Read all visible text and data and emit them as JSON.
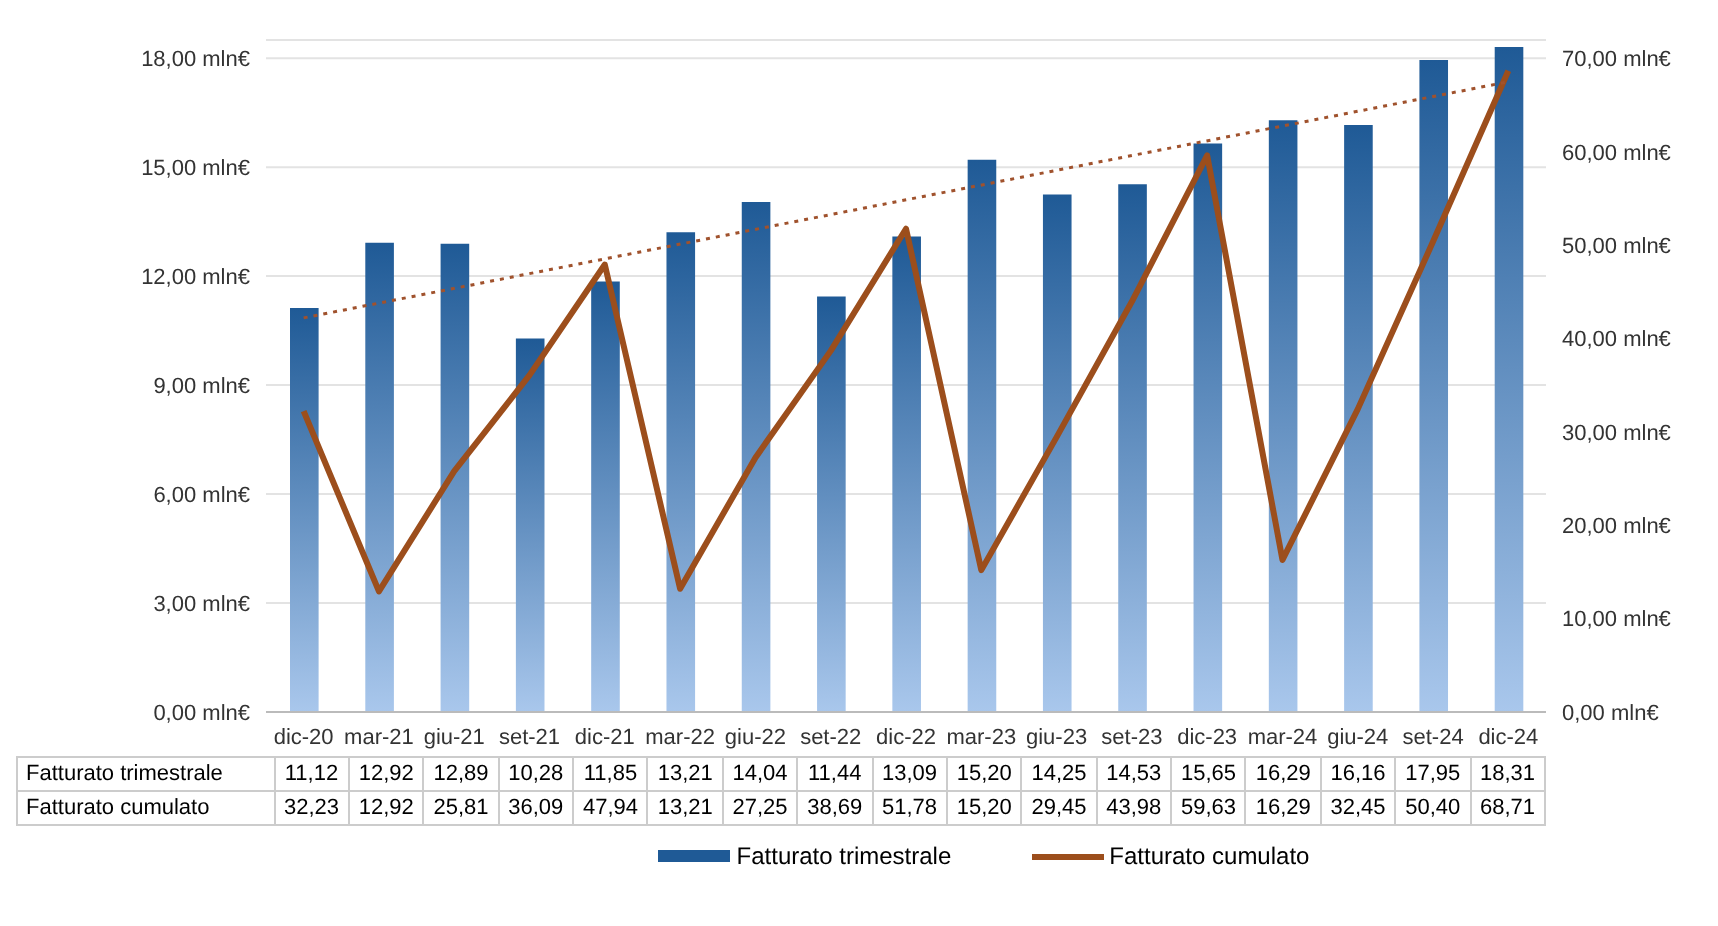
{
  "chart_data": {
    "type": "bar",
    "categories": [
      "dic-20",
      "mar-21",
      "giu-21",
      "set-21",
      "dic-21",
      "mar-22",
      "giu-22",
      "set-22",
      "dic-22",
      "mar-23",
      "giu-23",
      "set-23",
      "dic-23",
      "mar-24",
      "giu-24",
      "set-24",
      "dic-24"
    ],
    "series": [
      {
        "name": "Fatturato trimestrale",
        "color": "#1f5a96",
        "values": [
          11.12,
          12.92,
          12.89,
          10.28,
          11.85,
          13.21,
          14.04,
          11.44,
          13.09,
          15.2,
          14.25,
          14.53,
          15.65,
          16.29,
          16.16,
          17.95,
          18.31
        ],
        "value_labels": [
          "11,12",
          "12,92",
          "12,89",
          "10,28",
          "11,85",
          "13,21",
          "14,04",
          "11,44",
          "13,09",
          "15,20",
          "14,25",
          "14,53",
          "15,65",
          "16,29",
          "16,16",
          "17,95",
          "18,31"
        ]
      },
      {
        "name": "Fatturato  cumulato",
        "type": "line",
        "axis": "y2",
        "color": "#9c4e1c",
        "values": [
          32.23,
          12.92,
          25.81,
          36.09,
          47.94,
          13.21,
          27.25,
          38.69,
          51.78,
          15.2,
          29.45,
          43.98,
          59.63,
          16.29,
          32.45,
          50.4,
          68.71
        ],
        "value_labels": [
          "32,23",
          "12,92",
          "25,81",
          "36,09",
          "47,94",
          "13,21",
          "27,25",
          "38,69",
          "51,78",
          "15,20",
          "29,45",
          "43,98",
          "59,63",
          "16,29",
          "32,45",
          "50,40",
          "68,71"
        ]
      },
      {
        "type": "line",
        "line_style": "dotted",
        "color": "#a0522d",
        "values": [
          10.85,
          null,
          null,
          null,
          null,
          null,
          null,
          null,
          null,
          null,
          null,
          null,
          null,
          null,
          null,
          null,
          17.35
        ]
      }
    ],
    "ylim": [
      0,
      18.5
    ],
    "yticks": [
      {
        "value": 0,
        "label": "0,00 mln€"
      },
      {
        "value": 3,
        "label": "3,00 mln€"
      },
      {
        "value": 6,
        "label": "6,00 mln€"
      },
      {
        "value": 9,
        "label": "9,00 mln€"
      },
      {
        "value": 12,
        "label": "12,00 mln€"
      },
      {
        "value": 15,
        "label": "15,00 mln€"
      },
      {
        "value": 18,
        "label": "18,00 mln€"
      }
    ],
    "y2lim": [
      0,
      72
    ],
    "y2ticks": [
      {
        "value": 0,
        "label": "0,00 mln€"
      },
      {
        "value": 10,
        "label": "10,00 mln€"
      },
      {
        "value": 20,
        "label": "20,00 mln€"
      },
      {
        "value": 30,
        "label": "30,00 mln€"
      },
      {
        "value": 40,
        "label": "40,00 mln€"
      },
      {
        "value": 50,
        "label": "50,00 mln€"
      },
      {
        "value": 60,
        "label": "60,00 mln€"
      },
      {
        "value": 70,
        "label": "70,00 mln€"
      }
    ],
    "grid": "y",
    "legend": "bottom"
  }
}
